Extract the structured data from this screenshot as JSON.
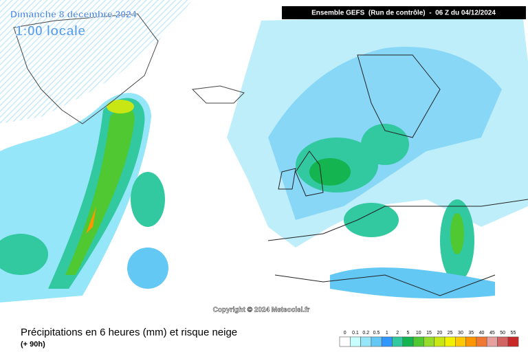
{
  "map": {
    "date_title": "Dimanche 8 décembre 2024",
    "local_time": "1:00 locale",
    "header": "Ensemble GEFS  (Run de contrôle)  -  06 Z du 04/12/2024",
    "copyright": "Copyright © 2024 Meteociel.fr",
    "caption": "Précipitations en 6 heures (mm) et risque neige",
    "lead_time": "(+ 90h)",
    "legend": {
      "steps": [
        0,
        0.1,
        0.2,
        0.5,
        1,
        2,
        5,
        10,
        15,
        20,
        25,
        30,
        35,
        40,
        45,
        50,
        55
      ],
      "colors": [
        "#ffffff",
        "#c8ffff",
        "#96e6fa",
        "#64c8f5",
        "#3296ff",
        "#32c8a0",
        "#14b450",
        "#50c832",
        "#96dc28",
        "#c8e614",
        "#f0f000",
        "#ffc800",
        "#ff9600",
        "#f07832",
        "#e6a0a0",
        "#d26464",
        "#c82828"
      ]
    }
  }
}
